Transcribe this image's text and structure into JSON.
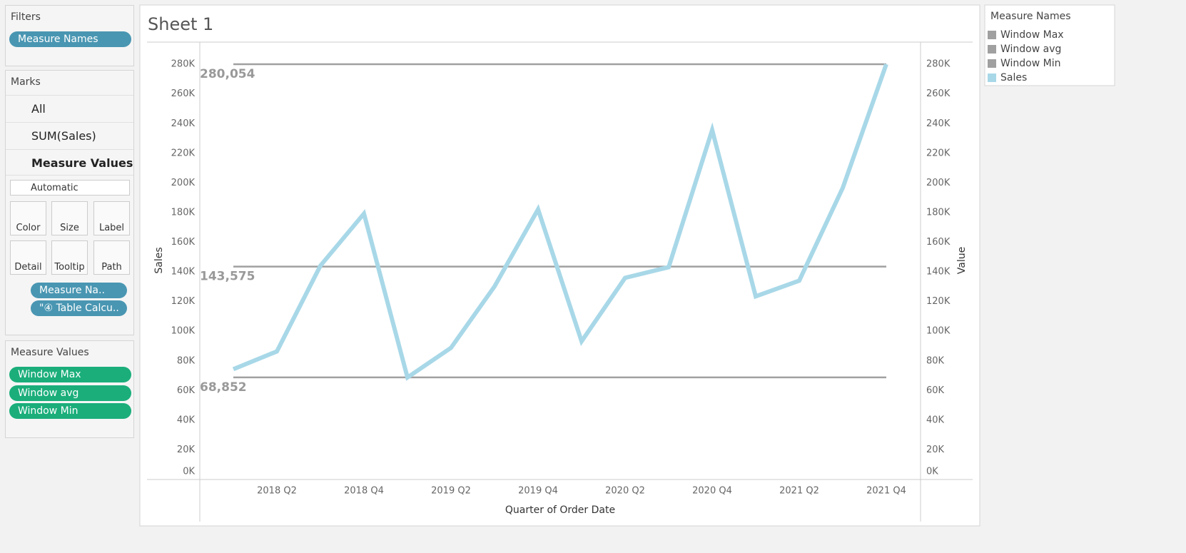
{
  "filters": {
    "title": "Filters",
    "pills": [
      "Measure Names"
    ]
  },
  "marks": {
    "title": "Marks",
    "layers": [
      "All",
      "SUM(Sales)",
      "Measure Values"
    ],
    "mark_type": "Automatic",
    "buttons": [
      "Color",
      "Size",
      "Label",
      "Detail",
      "Tooltip",
      "Path"
    ],
    "pills": [
      "Measure Na..",
      "\"④ Table Calcu.."
    ]
  },
  "measure_values": {
    "title": "Measure Values",
    "pills": [
      "Window Max",
      "Window avg",
      "Window Min"
    ]
  },
  "legend_title": "Measure Names",
  "chart_data": {
    "type": "line",
    "title": "Sheet 1",
    "x_label": "Quarter of Order Date",
    "y_label": "Sales",
    "y2_label": "Value",
    "categories": [
      null,
      "2018 Q2",
      null,
      "2018 Q4",
      null,
      "2019 Q2",
      null,
      "2019 Q4",
      null,
      "2020 Q2",
      null,
      "2020 Q4",
      null,
      "2021 Q2",
      null,
      "2021 Q4"
    ],
    "reference_lines": [
      {
        "name": "Window Max",
        "value": 280054,
        "label": "280,054",
        "color": "#a0a0a0"
      },
      {
        "name": "Window avg",
        "value": 143575,
        "label": "143,575",
        "color": "#a0a0a0"
      },
      {
        "name": "Window Min",
        "value": 68852,
        "label": "68,852",
        "color": "#a0a0a0"
      }
    ],
    "series": [
      {
        "name": "Sales",
        "color": "#a8d8e8",
        "values": [
          74400,
          86400,
          144200,
          179300,
          68852,
          88800,
          130200,
          182200,
          93200,
          136000,
          143200,
          235700,
          123500,
          134100,
          196700,
          280054
        ]
      }
    ],
    "ylim": [
      0,
      295000
    ],
    "yticks": [
      {
        "value": 0,
        "label": "0K"
      },
      {
        "value": 20000,
        "label": "20K"
      },
      {
        "value": 40000,
        "label": "40K"
      },
      {
        "value": 60000,
        "label": "60K"
      },
      {
        "value": 80000,
        "label": "80K"
      },
      {
        "value": 100000,
        "label": "100K"
      },
      {
        "value": 120000,
        "label": "120K"
      },
      {
        "value": 140000,
        "label": "140K"
      },
      {
        "value": 160000,
        "label": "160K"
      },
      {
        "value": 180000,
        "label": "180K"
      },
      {
        "value": 200000,
        "label": "200K"
      },
      {
        "value": 220000,
        "label": "220K"
      },
      {
        "value": 240000,
        "label": "240K"
      },
      {
        "value": 260000,
        "label": "260K"
      },
      {
        "value": 280000,
        "label": "280K"
      }
    ],
    "y2lim": [
      0,
      295000
    ],
    "y2ticks": [
      {
        "value": 0,
        "label": "0K"
      },
      {
        "value": 20000,
        "label": "20K"
      },
      {
        "value": 40000,
        "label": "40K"
      },
      {
        "value": 60000,
        "label": "60K"
      },
      {
        "value": 80000,
        "label": "80K"
      },
      {
        "value": 100000,
        "label": "100K"
      },
      {
        "value": 120000,
        "label": "120K"
      },
      {
        "value": 140000,
        "label": "140K"
      },
      {
        "value": 160000,
        "label": "160K"
      },
      {
        "value": 180000,
        "label": "180K"
      },
      {
        "value": 200000,
        "label": "200K"
      },
      {
        "value": 220000,
        "label": "220K"
      },
      {
        "value": 240000,
        "label": "240K"
      },
      {
        "value": 260000,
        "label": "260K"
      },
      {
        "value": 280000,
        "label": "280K"
      }
    ],
    "grid": false
  }
}
